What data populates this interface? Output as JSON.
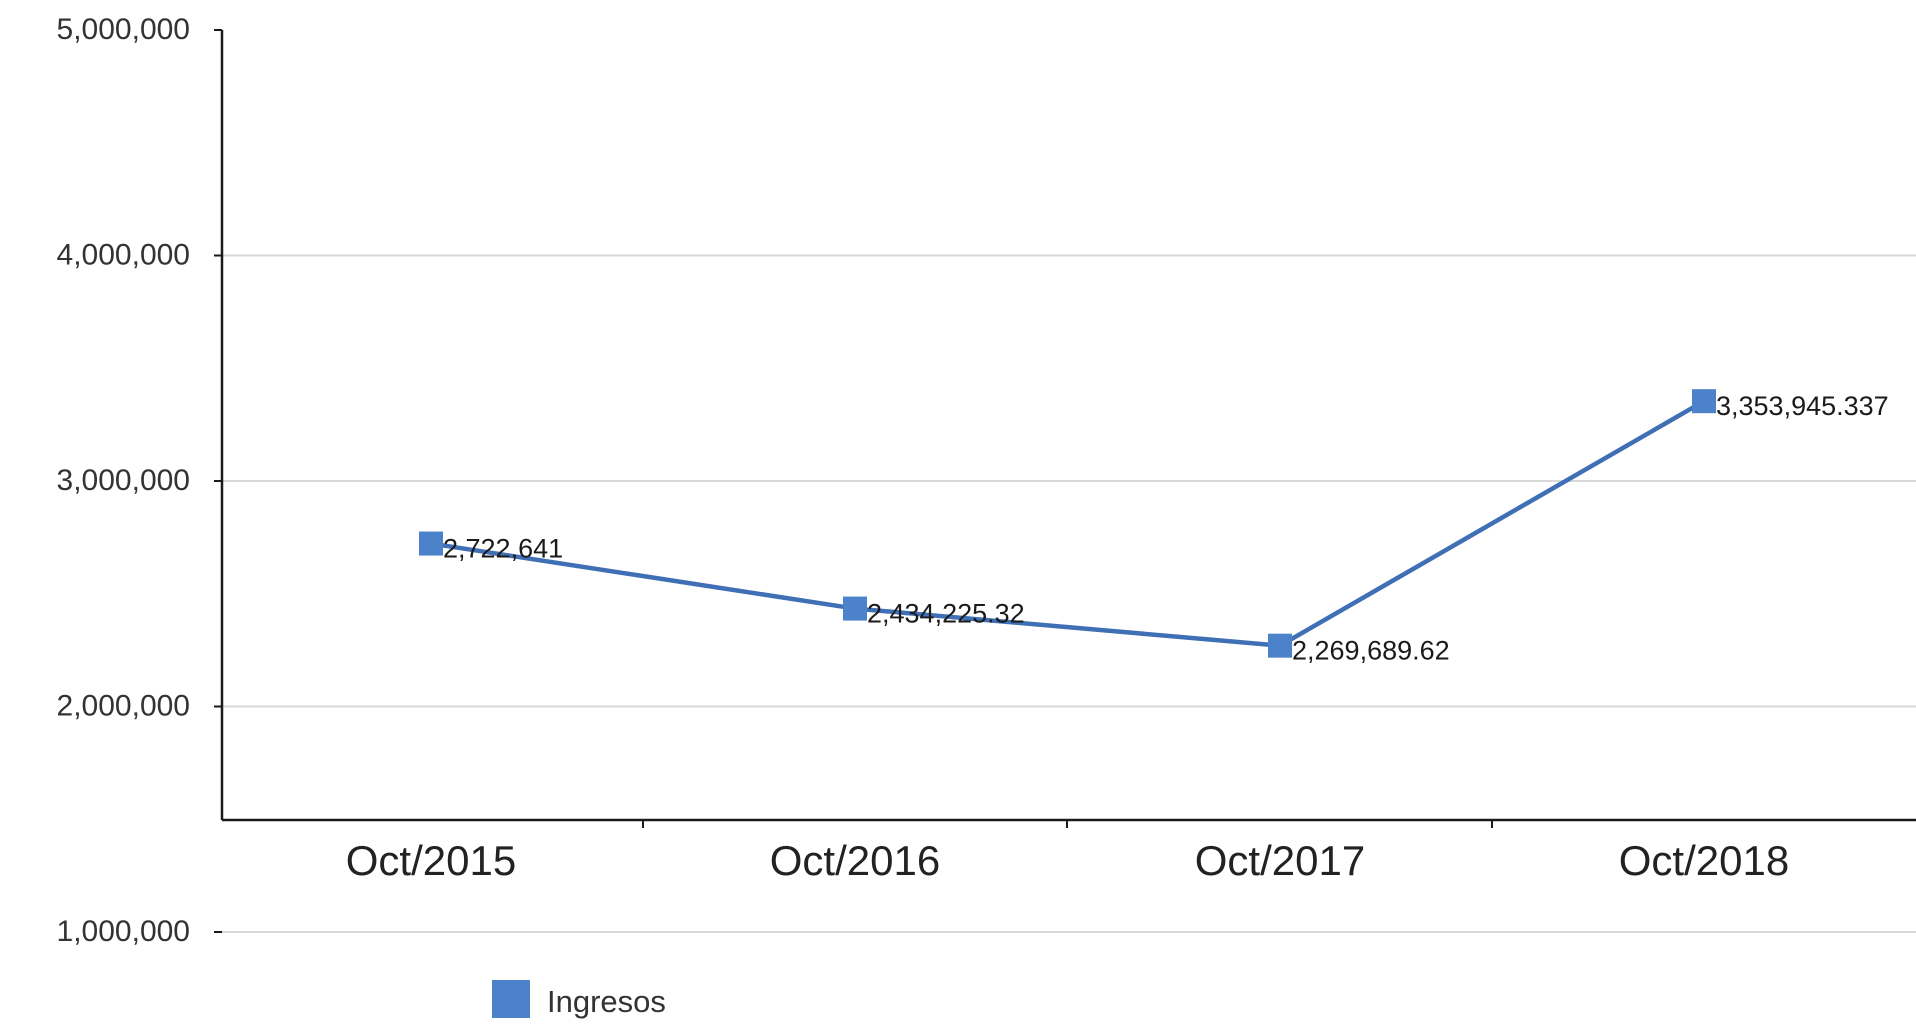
{
  "chart_data": {
    "type": "line",
    "title": "",
    "xlabel": "",
    "ylabel": "",
    "categories": [
      "Oct/2015",
      "Oct/2016",
      "Oct/2017",
      "Oct/2018"
    ],
    "series": [
      {
        "name": "Ingresos",
        "values": [
          2722641,
          2434225.32,
          2269689.62,
          3353945.337
        ],
        "labels": [
          "2,722,641",
          "2,434,225.32",
          "2,269,689.62",
          "3,353,945.337"
        ],
        "color": "#3f6fb5"
      }
    ],
    "yticks": [
      1000000,
      2000000,
      3000000,
      4000000,
      5000000
    ],
    "ytick_labels": [
      "1,000,000",
      "2,000,000",
      "3,000,000",
      "4,000,000",
      "5,000,000"
    ],
    "ylim": [
      1000000,
      5000000
    ],
    "grid": true,
    "legend": "bottom-left"
  },
  "colors": {
    "line": "#3f6fb5",
    "marker": "#4b82c9",
    "grid": "#d8d8d8",
    "axis": "#1a1a1a",
    "text": "#1a1a1a"
  }
}
